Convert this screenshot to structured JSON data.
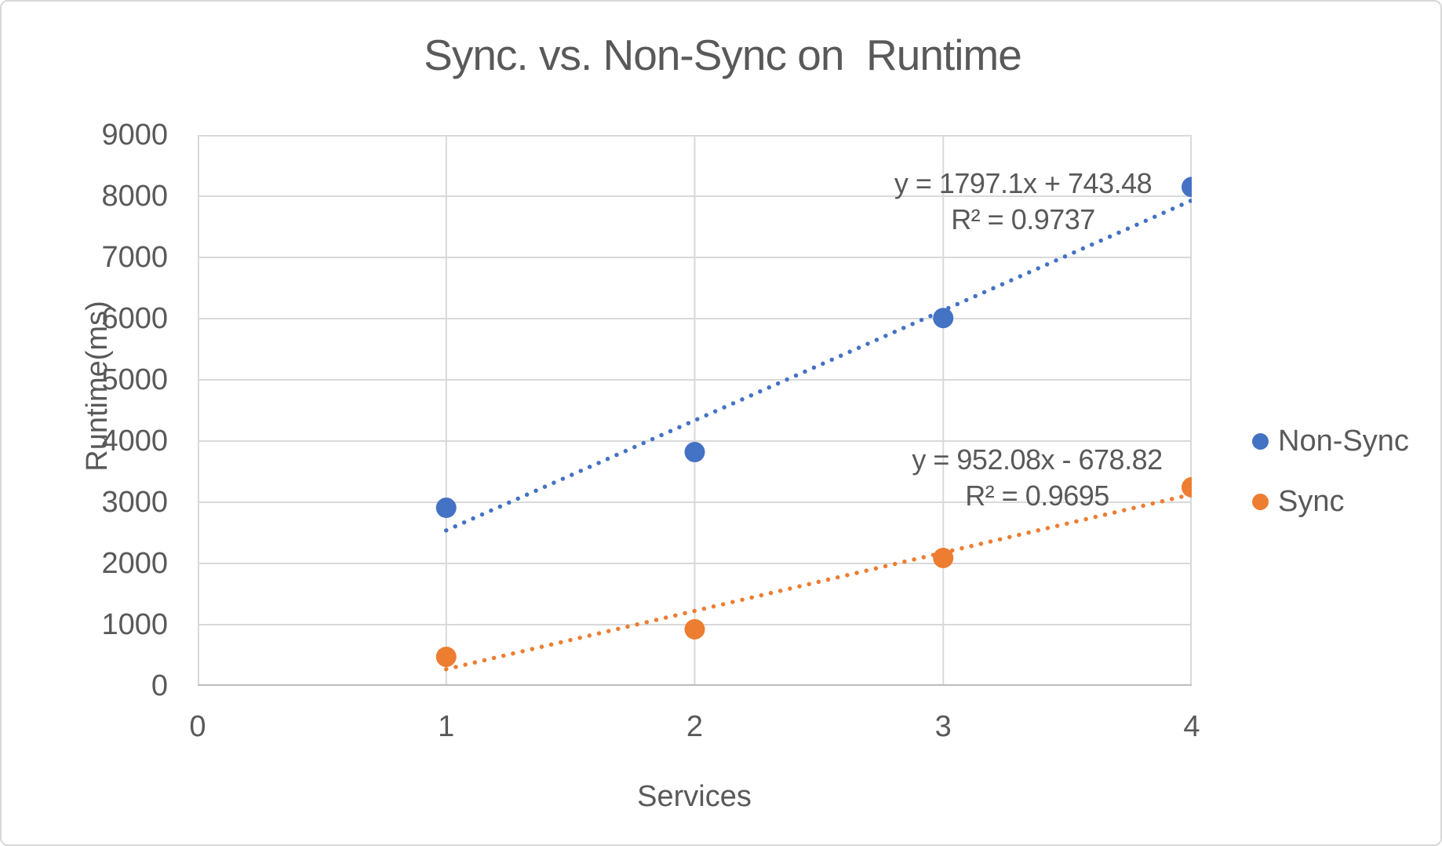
{
  "chart_data": {
    "type": "scatter",
    "title": "Sync. vs. Non-Sync on  Runtime",
    "xlabel": "Services",
    "ylabel": "Runtime(ms)",
    "x": [
      1,
      2,
      3,
      4
    ],
    "series": [
      {
        "name": "Non-Sync",
        "color": "#4472C4",
        "values": [
          2910,
          3820,
          6010,
          8150
        ],
        "trendline": {
          "style": "dotted",
          "slope": 1797.1,
          "intercept": 743.48,
          "r_squared": 0.9737,
          "equation": "y = 1797.1x + 743.48",
          "r2_label": "R² = 0.9737"
        }
      },
      {
        "name": "Sync",
        "color": "#ED7D31",
        "values": [
          475,
          925,
          2090,
          3245
        ],
        "trendline": {
          "style": "dotted",
          "slope": 952.08,
          "intercept": -678.82,
          "r_squared": 0.9695,
          "equation": "y = 952.08x - 678.82",
          "r2_label": "R² = 0.9695"
        }
      }
    ],
    "xlim": [
      0,
      4
    ],
    "ylim": [
      0,
      9000
    ],
    "x_ticks": [
      0,
      1,
      2,
      3,
      4
    ],
    "y_ticks": [
      0,
      1000,
      2000,
      3000,
      4000,
      5000,
      6000,
      7000,
      8000,
      9000
    ],
    "grid": true,
    "legend_position": "right"
  },
  "colors": {
    "series_blue": "#4472C4",
    "series_orange": "#ED7D31",
    "text": "#595959",
    "gridline": "#D9D9D9",
    "axis_line": "#BFBFBF",
    "border": "#D7D7D7",
    "background": "#FFFFFF"
  }
}
